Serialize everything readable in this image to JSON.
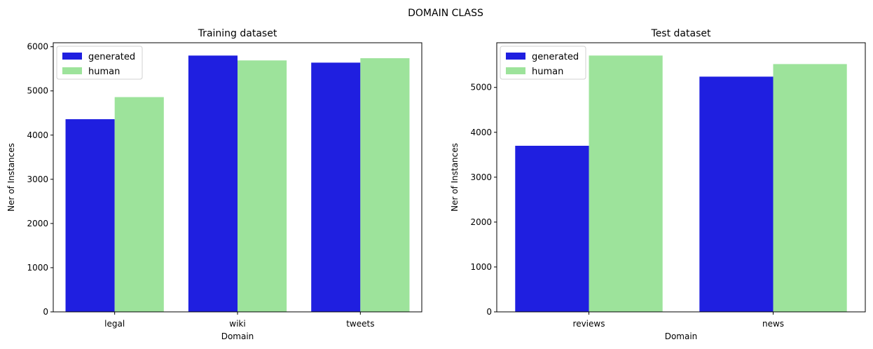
{
  "figure_title": "DOMAIN CLASS",
  "chart_data": [
    {
      "type": "bar",
      "title": "Training dataset",
      "xlabel": "Domain",
      "ylabel": "Ner of Instances",
      "categories": [
        "legal",
        "wiki",
        "tweets"
      ],
      "series": [
        {
          "name": "generated",
          "color": "#1f1fe0",
          "values": [
            4360,
            5800,
            5640
          ]
        },
        {
          "name": "human",
          "color": "#9de39b",
          "values": [
            4860,
            5690,
            5740
          ]
        }
      ],
      "ylim": [
        0,
        6090
      ],
      "yticks": [
        0,
        1000,
        2000,
        3000,
        4000,
        5000,
        6000
      ],
      "legend": "top-left",
      "grid": false
    },
    {
      "type": "bar",
      "title": "Test dataset",
      "xlabel": "Domain",
      "ylabel": "Ner of Instances",
      "categories": [
        "reviews",
        "news"
      ],
      "series": [
        {
          "name": "generated",
          "color": "#1f1fe0",
          "values": [
            3700,
            5240
          ]
        },
        {
          "name": "human",
          "color": "#9de39b",
          "values": [
            5710,
            5520
          ]
        }
      ],
      "ylim": [
        0,
        5995
      ],
      "yticks": [
        0,
        1000,
        2000,
        3000,
        4000,
        5000
      ],
      "legend": "top-left",
      "grid": false
    }
  ]
}
